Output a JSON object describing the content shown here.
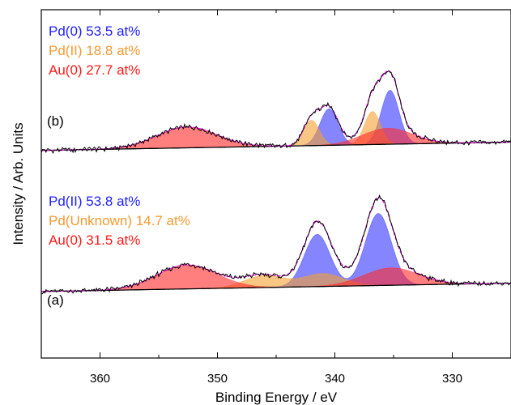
{
  "chart_data": {
    "type": "line",
    "title": "",
    "xlabel": "Binding Energy / eV",
    "ylabel": "Intensity / Arb. Units",
    "x_reversed": true,
    "xlim": [
      365,
      325
    ],
    "ylim": [
      0,
      1
    ],
    "x_ticks": [
      360,
      350,
      340,
      330
    ],
    "y_ticks_shown": false,
    "grid": false,
    "colors": {
      "pd0_or_pdII": "#3333ff",
      "pd_secondary": "#f5a030",
      "au0": "#ff2a2a",
      "overlap": "#5a1aa0",
      "measured": "#000000",
      "envelope": "#ff00ff",
      "background": "#000000"
    },
    "panels": [
      {
        "label": "(b)",
        "baseline": 0.62,
        "legend": [
          {
            "text": "Pd(0) 53.5 at%",
            "color": "#2020ff"
          },
          {
            "text": "Pd(II) 18.8 at%",
            "color": "#f59a30"
          },
          {
            "text": "Au(0) 27.7 at%",
            "color": "#ff1a1a"
          }
        ],
        "components": [
          {
            "name": "Pd(0)",
            "color": "#3333ff",
            "peaks": [
              {
                "center": 340.5,
                "height": 0.105,
                "fwhm": 1.8
              },
              {
                "center": 335.3,
                "height": 0.155,
                "fwhm": 1.8
              }
            ]
          },
          {
            "name": "Pd(II)",
            "color": "#f5a030",
            "peaks": [
              {
                "center": 342.0,
                "height": 0.073,
                "fwhm": 1.6
              },
              {
                "center": 336.8,
                "height": 0.095,
                "fwhm": 1.6
              }
            ]
          },
          {
            "name": "Au(0)",
            "color": "#ff2a2a",
            "peaks": [
              {
                "center": 352.6,
                "height": 0.06,
                "fwhm": 6.0
              },
              {
                "center": 335.5,
                "height": 0.046,
                "fwhm": 5.0
              }
            ]
          }
        ]
      },
      {
        "label": "(a)",
        "baseline": 0.215,
        "legend": [
          {
            "text": "Pd(II) 53.8 at%",
            "color": "#2020ff"
          },
          {
            "text": "Pd(Unknown) 14.7 at%",
            "color": "#f59a30"
          },
          {
            "text": "Au(0) 31.5 at%",
            "color": "#ff1a1a"
          }
        ],
        "components": [
          {
            "name": "Pd(II)",
            "color": "#3333ff",
            "peaks": [
              {
                "center": 341.5,
                "height": 0.15,
                "fwhm": 2.6
              },
              {
                "center": 336.3,
                "height": 0.207,
                "fwhm": 2.6
              }
            ]
          },
          {
            "name": "Pd(Unknown)",
            "color": "#f5a030",
            "peaks": [
              {
                "center": 346.0,
                "height": 0.035,
                "fwhm": 4.0
              },
              {
                "center": 341.0,
                "height": 0.037,
                "fwhm": 4.0
              }
            ]
          },
          {
            "name": "Au(0)",
            "color": "#ff2a2a",
            "peaks": [
              {
                "center": 352.6,
                "height": 0.069,
                "fwhm": 6.0
              },
              {
                "center": 335.2,
                "height": 0.05,
                "fwhm": 5.5
              }
            ]
          }
        ]
      }
    ]
  }
}
